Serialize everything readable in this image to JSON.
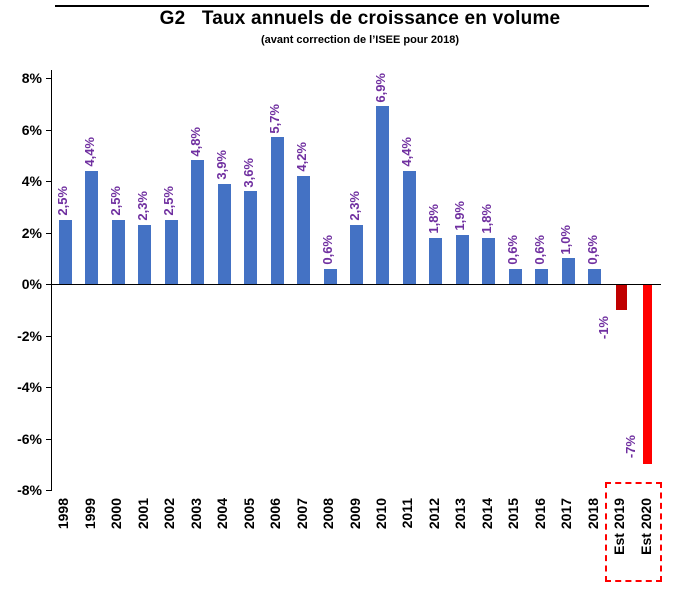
{
  "chart": {
    "title": "G2   Taux annuels de croissance en volume",
    "subtitle": "(avant correction de l’ISEE pour 2018)"
  },
  "chart_data": {
    "type": "bar",
    "title": "G2   Taux annuels de croissance en volume",
    "subtitle": "(avant correction de l’ISEE pour 2018)",
    "categories": [
      "1998",
      "1999",
      "2000",
      "2001",
      "2002",
      "2003",
      "2004",
      "2005",
      "2006",
      "2007",
      "2008",
      "2009",
      "2010",
      "2011",
      "2012",
      "2013",
      "2014",
      "2015",
      "2016",
      "2017",
      "2018",
      "Est 2019",
      "Est 2020"
    ],
    "values": [
      2.5,
      4.4,
      2.5,
      2.3,
      2.5,
      4.8,
      3.9,
      3.6,
      5.7,
      4.2,
      0.6,
      2.3,
      6.9,
      4.4,
      1.8,
      1.9,
      1.8,
      0.6,
      0.6,
      1.0,
      0.6,
      -1,
      -7
    ],
    "value_labels": [
      "2,5%",
      "4,4%",
      "2,5%",
      "2,3%",
      "2,5%",
      "4,8%",
      "3,9%",
      "3,6%",
      "5,7%",
      "4,2%",
      "0,6%",
      "2,3%",
      "6,9%",
      "4,4%",
      "1,8%",
      "1,9%",
      "1,8%",
      "0,6%",
      "0,6%",
      "1,0%",
      "0,6%",
      "-1%",
      "-7%"
    ],
    "bar_colors": [
      "#4472C4",
      "#4472C4",
      "#4472C4",
      "#4472C4",
      "#4472C4",
      "#4472C4",
      "#4472C4",
      "#4472C4",
      "#4472C4",
      "#4472C4",
      "#4472C4",
      "#4472C4",
      "#4472C4",
      "#4472C4",
      "#4472C4",
      "#4472C4",
      "#4472C4",
      "#4472C4",
      "#4472C4",
      "#4472C4",
      "#4472C4",
      "#C00000",
      "#FF0000"
    ],
    "ylim": [
      -8,
      8
    ],
    "ytick_step": 2,
    "yticks": [
      8,
      6,
      4,
      2,
      0,
      -2,
      -4,
      -6,
      -8
    ],
    "ytick_labels": [
      "8%",
      "6%",
      "4%",
      "2%",
      "0%",
      "-2%",
      "-4%",
      "-6%",
      "-8%"
    ],
    "grid": false,
    "legend": false,
    "xlabel": "",
    "ylabel": "",
    "value_label_color": "#7030A0",
    "axis_color": "#000000",
    "highlight_box_color": "#FF0000",
    "highlight_categories": [
      "Est 2019",
      "Est 2020"
    ]
  }
}
